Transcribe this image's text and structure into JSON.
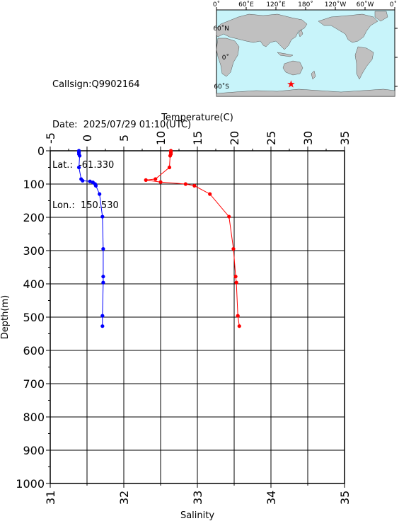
{
  "info": {
    "callsign": "Callsign:Q9902164",
    "date": "Date:  2025/07/29 01:10(UTC)",
    "lat": "Lat.:  -61.330",
    "lon": "Lon.:  150.530"
  },
  "map": {
    "top_labels": [
      "0˚",
      "60˚E",
      "120˚E",
      "180˚",
      "120˚W",
      "60˚W",
      "0˚"
    ],
    "side_labels": [
      "60˚N",
      "0˚",
      "60˚S"
    ],
    "ocean_color": "#c8f4fa",
    "land_color": "#c0c0c0",
    "marker_color": "#ff0000",
    "marker": {
      "lon": 150.53,
      "lat": -61.33
    }
  },
  "chart_data": {
    "type": "line",
    "ylabel": "Depth(m)",
    "ylim": [
      1000,
      0
    ],
    "yticks": [
      0,
      100,
      200,
      300,
      400,
      500,
      600,
      700,
      800,
      900,
      1000
    ],
    "top_axis": {
      "label": "Temperature(C)",
      "range": [
        -5,
        35
      ],
      "ticks": [
        -5,
        0,
        5,
        10,
        15,
        20,
        25,
        30,
        35
      ]
    },
    "bottom_axis": {
      "label": "Salinity",
      "range": [
        31,
        35
      ],
      "ticks": [
        31,
        32,
        33,
        34,
        35
      ]
    },
    "grid": true,
    "series": [
      {
        "color": "#0000ff",
        "axis": "temperature",
        "points": [
          [
            -1.1,
            0
          ],
          [
            -1.1,
            5
          ],
          [
            -1.1,
            10
          ],
          [
            -1.0,
            15
          ],
          [
            -1.1,
            50
          ],
          [
            -0.8,
            85
          ],
          [
            -0.6,
            90
          ],
          [
            0.4,
            92
          ],
          [
            0.8,
            95
          ],
          [
            1.1,
            100
          ],
          [
            1.2,
            105
          ],
          [
            1.7,
            130
          ],
          [
            2.1,
            198
          ],
          [
            2.2,
            295
          ],
          [
            2.2,
            378
          ],
          [
            2.2,
            396
          ],
          [
            2.1,
            496
          ],
          [
            2.1,
            527
          ]
        ]
      },
      {
        "color": "#ff0000",
        "axis": "salinity",
        "points": [
          [
            32.64,
            0
          ],
          [
            32.64,
            5
          ],
          [
            32.64,
            10
          ],
          [
            32.63,
            15
          ],
          [
            32.62,
            50
          ],
          [
            32.43,
            85
          ],
          [
            32.3,
            88
          ],
          [
            32.5,
            94
          ],
          [
            32.84,
            100
          ],
          [
            32.96,
            105
          ],
          [
            33.17,
            130
          ],
          [
            33.43,
            198
          ],
          [
            33.49,
            295
          ],
          [
            33.52,
            378
          ],
          [
            33.53,
            396
          ],
          [
            33.55,
            496
          ],
          [
            33.57,
            527
          ]
        ]
      }
    ]
  }
}
